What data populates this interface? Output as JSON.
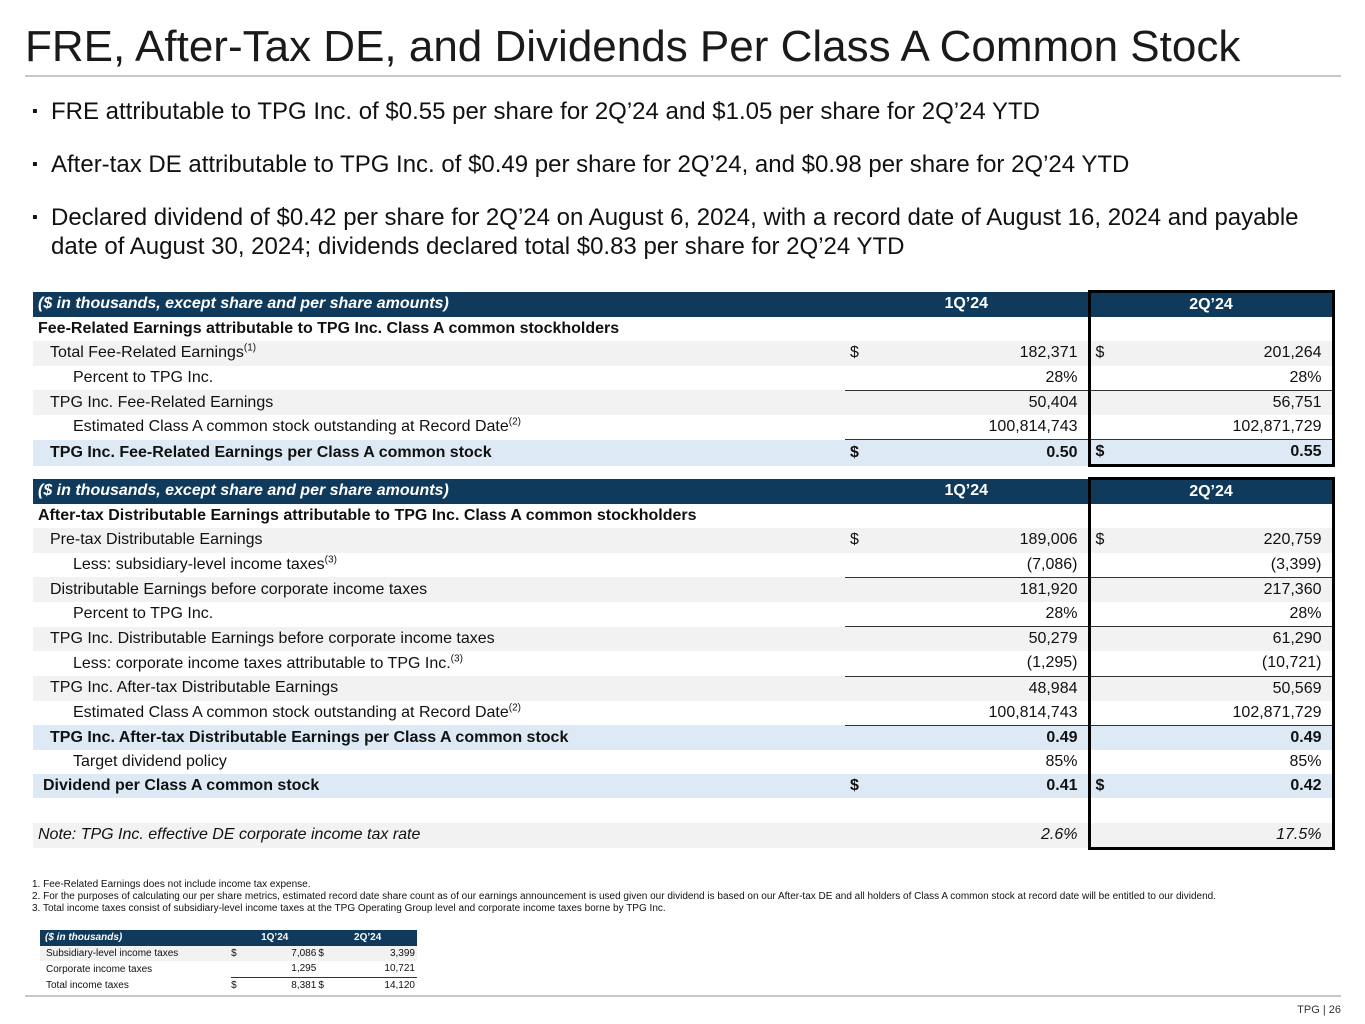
{
  "title": "FRE, After-Tax DE, and Dividends Per Class A Common Stock",
  "bullets": [
    "FRE attributable to TPG Inc. of $0.55 per share for 2Q’24 and $1.05 per share for 2Q’24 YTD",
    "After-tax DE attributable to TPG Inc. of $0.49 per share for 2Q’24, and $0.98 per share for 2Q’24 YTD",
    "Declared dividend of $0.42 per share for 2Q’24 on August 6, 2024, with a record date of August 16, 2024 and payable date of August 30, 2024; dividends declared total $0.83 per share for 2Q’24 YTD"
  ],
  "fre_table": {
    "header": {
      "label": "($ in thousands, except share and per share amounts)",
      "q1": "1Q’24",
      "q2": "2Q’24"
    },
    "section_title": "Fee-Related Earnings attributable to TPG Inc. Class A common stockholders",
    "rows": [
      {
        "label": "Total Fee-Related Earnings",
        "sup": "(1)",
        "cur1": "$",
        "v1": "182,371",
        "cur2": "$",
        "v2": "201,264"
      },
      {
        "label": "Percent to TPG Inc.",
        "v1": "28%",
        "v2": "28%"
      },
      {
        "label": "TPG Inc. Fee-Related Earnings",
        "v1": "50,404",
        "v2": "56,751"
      },
      {
        "label": "Estimated Class A common stock outstanding at Record Date",
        "sup": "(2)",
        "v1": "100,814,743",
        "v2": "102,871,729"
      },
      {
        "label": "TPG Inc. Fee-Related Earnings per Class A common stock",
        "cur1": "$",
        "v1": "0.50",
        "cur2": "$",
        "v2": "0.55"
      }
    ]
  },
  "de_table": {
    "header": {
      "label": "($ in thousands, except share and per share amounts)",
      "q1": "1Q’24",
      "q2": "2Q’24"
    },
    "section_title": "After-tax Distributable Earnings attributable to TPG Inc. Class A common stockholders",
    "rows": [
      {
        "label": "Pre-tax Distributable Earnings",
        "cur1": "$",
        "v1": "189,006",
        "cur2": "$",
        "v2": "220,759"
      },
      {
        "label": "Less: subsidiary-level income taxes",
        "sup": "(3)",
        "v1": "(7,086)",
        "v2": "(3,399)"
      },
      {
        "label": "Distributable Earnings before corporate income taxes",
        "v1": "181,920",
        "v2": "217,360"
      },
      {
        "label": "Percent to TPG Inc.",
        "v1": "28%",
        "v2": "28%"
      },
      {
        "label": "TPG Inc. Distributable Earnings before corporate income taxes",
        "v1": "50,279",
        "v2": "61,290"
      },
      {
        "label": "Less: corporate income taxes attributable to TPG Inc.",
        "sup": "(3)",
        "v1": "(1,295)",
        "v2": "(10,721)"
      },
      {
        "label": "TPG Inc. After-tax Distributable Earnings",
        "v1": "48,984",
        "v2": "50,569"
      },
      {
        "label": "Estimated Class A common stock outstanding at Record Date",
        "sup": "(2)",
        "v1": "100,814,743",
        "v2": "102,871,729"
      },
      {
        "label": "TPG Inc. After-tax Distributable Earnings per Class A common stock",
        "v1": "0.49",
        "v2": "0.49"
      },
      {
        "label": "Target dividend policy",
        "v1": "85%",
        "v2": "85%"
      },
      {
        "label": "Dividend per Class A common stock",
        "cur1": "$",
        "v1": "0.41",
        "cur2": "$",
        "v2": "0.42"
      },
      {
        "label": "Note: TPG Inc. effective DE corporate income tax rate",
        "v1": "2.6%",
        "v2": "17.5%"
      }
    ]
  },
  "footnotes": [
    "1. Fee-Related Earnings does not include income tax expense.",
    "2. For the purposes of calculating our per share metrics, estimated record date share count as of our earnings announcement is used given our dividend is based on our After-tax DE and all holders of Class A common stock at record date will be entitled to our dividend.",
    "3. Total income taxes consist of subsidiary-level income taxes at the TPG Operating Group level and corporate income taxes borne by TPG Inc."
  ],
  "tax_table": {
    "header": {
      "label": "($ in thousands)",
      "q1": "1Q’24",
      "q2": "2Q’24"
    },
    "rows": [
      {
        "label": "Subsidiary-level income taxes",
        "cur1": "$",
        "v1": "7,086",
        "cur2": "$",
        "v2": "3,399"
      },
      {
        "label": "Corporate income taxes",
        "v1": "1,295",
        "v2": "10,721"
      },
      {
        "label": "Total income taxes",
        "cur1": "$",
        "v1": "8,381",
        "cur2": "$",
        "v2": "14,120"
      }
    ]
  },
  "footer": {
    "page": "TPG | 26"
  }
}
